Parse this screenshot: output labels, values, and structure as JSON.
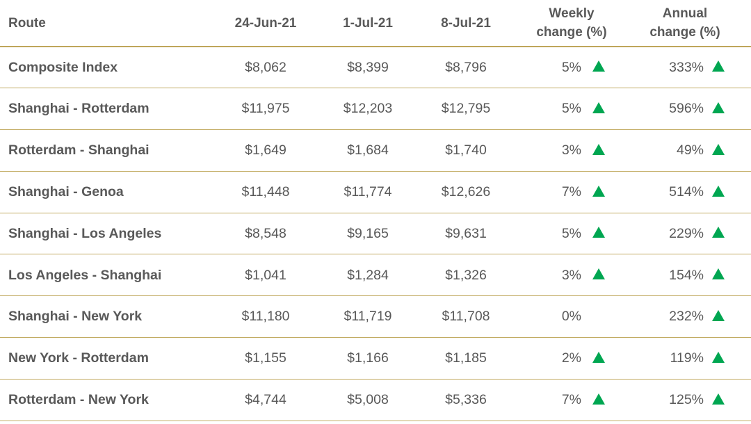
{
  "header": {
    "route": "Route",
    "date1": "24-Jun-21",
    "date2": "1-Jul-21",
    "date3": "8-Jul-21",
    "weekly_line1": "Weekly",
    "weekly_line2": "change (%)",
    "annual_line1": "Annual",
    "annual_line2": "change (%)"
  },
  "colors": {
    "text": "#595959",
    "divider": "#bfa65b",
    "up_arrow": "#00a651"
  },
  "rows": [
    {
      "route": "Composite Index",
      "d1": "$8,062",
      "d2": "$8,399",
      "d3": "$8,796",
      "weekly": "5%",
      "weekly_up": true,
      "annual": "333%",
      "annual_up": true
    },
    {
      "route": "Shanghai - Rotterdam",
      "d1": "$11,975",
      "d2": "$12,203",
      "d3": "$12,795",
      "weekly": "5%",
      "weekly_up": true,
      "annual": "596%",
      "annual_up": true
    },
    {
      "route": "Rotterdam - Shanghai",
      "d1": "$1,649",
      "d2": "$1,684",
      "d3": "$1,740",
      "weekly": "3%",
      "weekly_up": true,
      "annual": "49%",
      "annual_up": true
    },
    {
      "route": "Shanghai - Genoa",
      "d1": "$11,448",
      "d2": "$11,774",
      "d3": "$12,626",
      "weekly": "7%",
      "weekly_up": true,
      "annual": "514%",
      "annual_up": true
    },
    {
      "route": "Shanghai - Los Angeles",
      "d1": "$8,548",
      "d2": "$9,165",
      "d3": "$9,631",
      "weekly": "5%",
      "weekly_up": true,
      "annual": "229%",
      "annual_up": true
    },
    {
      "route": "Los Angeles - Shanghai",
      "d1": "$1,041",
      "d2": "$1,284",
      "d3": "$1,326",
      "weekly": "3%",
      "weekly_up": true,
      "annual": "154%",
      "annual_up": true
    },
    {
      "route": "Shanghai - New York",
      "d1": "$11,180",
      "d2": "$11,719",
      "d3": "$11,708",
      "weekly": "0%",
      "weekly_up": false,
      "annual": "232%",
      "annual_up": true
    },
    {
      "route": "New York - Rotterdam",
      "d1": "$1,155",
      "d2": "$1,166",
      "d3": "$1,185",
      "weekly": "2%",
      "weekly_up": true,
      "annual": "119%",
      "annual_up": true
    },
    {
      "route": "Rotterdam - New York",
      "d1": "$4,744",
      "d2": "$5,008",
      "d3": "$5,336",
      "weekly": "7%",
      "weekly_up": true,
      "annual": "125%",
      "annual_up": true
    }
  ]
}
